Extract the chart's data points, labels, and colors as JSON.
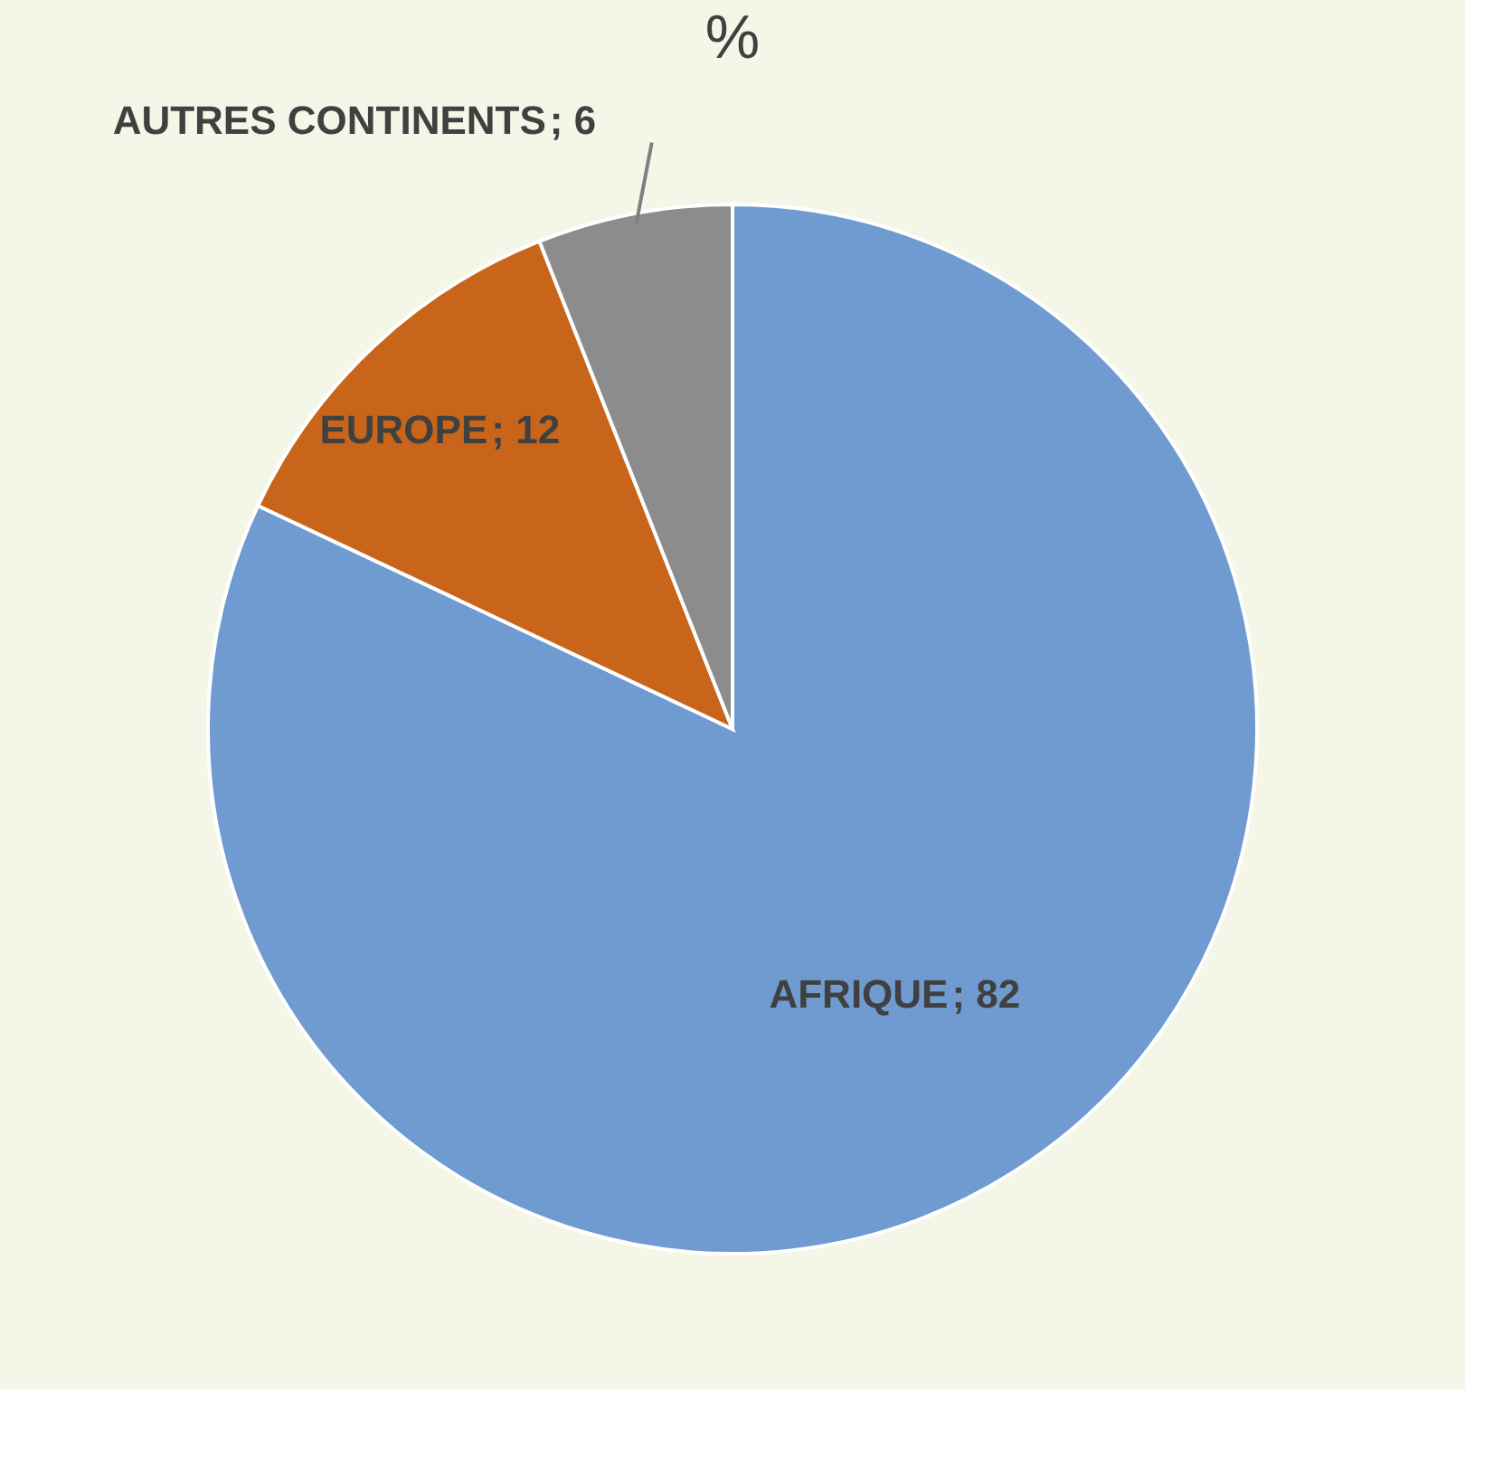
{
  "chart_data": {
    "type": "pie",
    "title": "%",
    "categories": [
      "AFRIQUE",
      "EUROPE",
      "AUTRES CONTINENTS"
    ],
    "values": [
      82,
      12,
      6
    ],
    "colors": [
      "#6f9bd1",
      "#c8651b",
      "#8c8c8c"
    ],
    "value_labels": [
      "; 82",
      "; 12",
      "; 6"
    ],
    "legend": false
  }
}
